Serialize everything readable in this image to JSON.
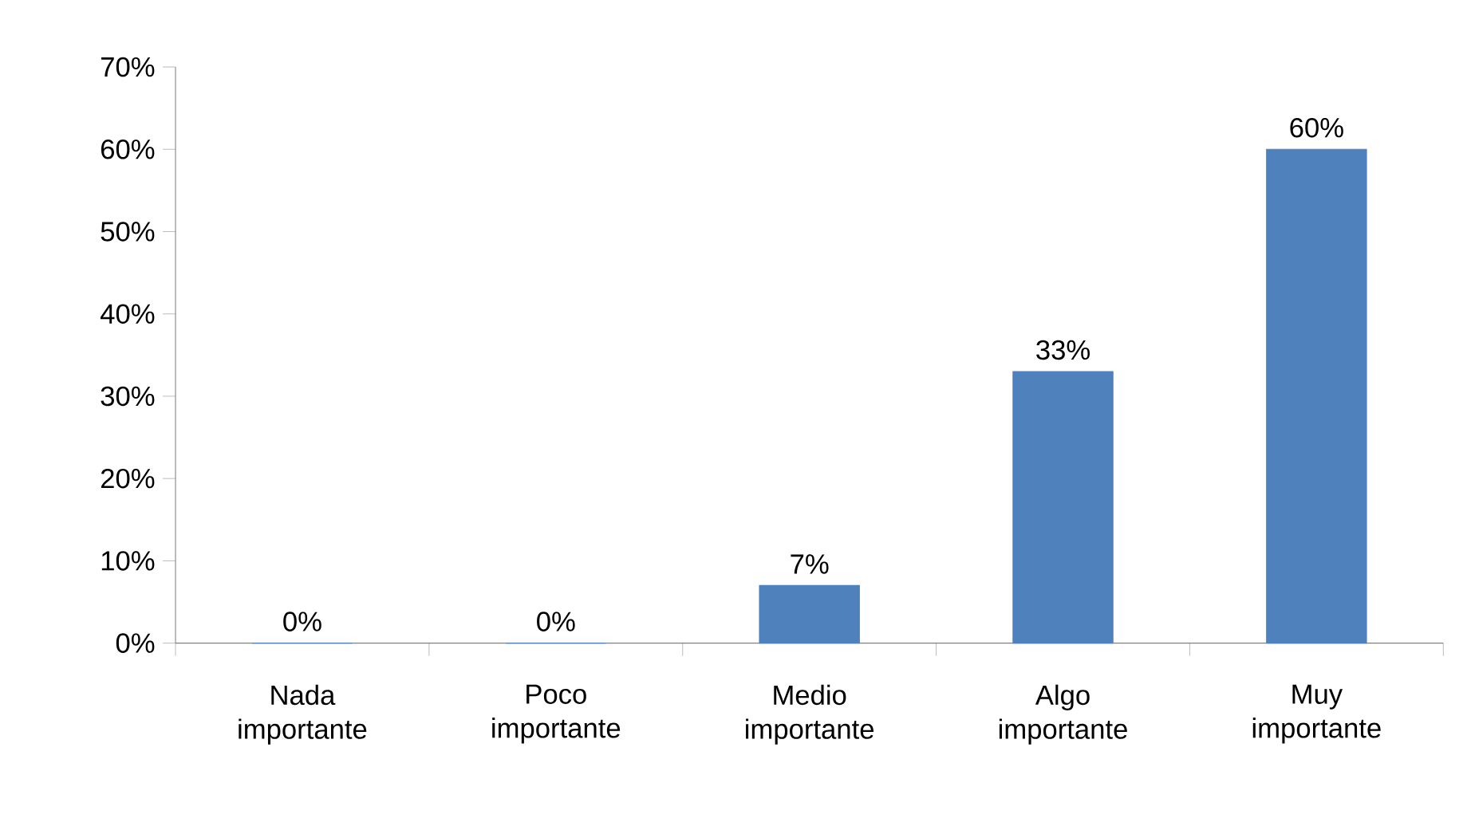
{
  "chart_data": {
    "type": "bar",
    "categories": [
      "Nada importante",
      "Poco importante",
      "Medio importante",
      "Algo importante",
      "Muy importante"
    ],
    "values": [
      0,
      0,
      7,
      33,
      60
    ],
    "value_labels": [
      "0%",
      "0%",
      "7%",
      "33%",
      "60%"
    ],
    "color": "#4f81bd",
    "ylim": [
      0,
      70
    ],
    "yticks": [
      {
        "value": 0,
        "label": "0%"
      },
      {
        "value": 10,
        "label": "10%"
      },
      {
        "value": 20,
        "label": "20%"
      },
      {
        "value": 30,
        "label": "30%"
      },
      {
        "value": 40,
        "label": "40%"
      },
      {
        "value": 50,
        "label": "50%"
      },
      {
        "value": 60,
        "label": "60%"
      },
      {
        "value": 70,
        "label": "70%"
      }
    ]
  }
}
